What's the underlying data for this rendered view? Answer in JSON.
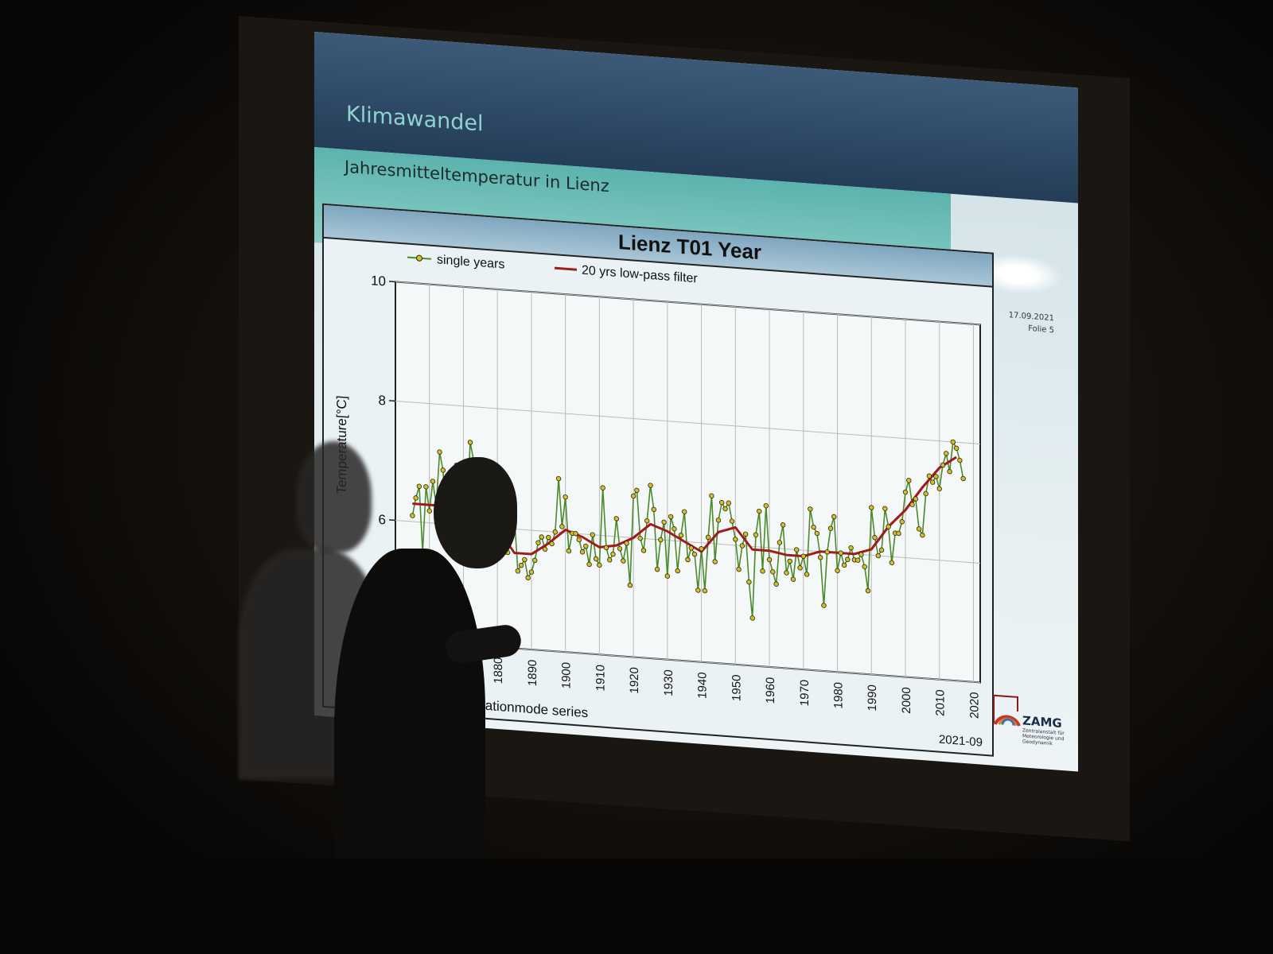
{
  "slide": {
    "title": "Klimawandel",
    "subtitle": "Jahresmitteltemperatur in Lienz",
    "date": "17.09.2021",
    "folie": "Folie 5",
    "logo_text": "ZAMG",
    "logo_subtitle": "Zentralanstalt für Meteorologie und Geodynamik"
  },
  "colors": {
    "single_years": "#4a8a2a",
    "marker": "#d4c21a",
    "lowpass": "#a01c1c",
    "header": "#243d58",
    "teal": "#5cb3ad"
  },
  "chart_data": {
    "type": "line",
    "title": "Lienz T01 Year",
    "ylabel": "Temperature[°C]",
    "footer_left": "Homogenised stationmode series",
    "footer_right": "2021-09",
    "xlim": [
      1850,
      2022
    ],
    "ylim": [
      4,
      10
    ],
    "yticks": [
      4,
      6,
      8,
      10
    ],
    "xticks": [
      1860,
      1870,
      1880,
      1890,
      1900,
      1910,
      1920,
      1930,
      1940,
      1950,
      1960,
      1970,
      1980,
      1990,
      2000,
      2010,
      2020
    ],
    "grid": true,
    "legend_position": "top",
    "series": [
      {
        "name": "single years",
        "x_start": 1855,
        "values": [
          6.1,
          6.4,
          6.6,
          5.5,
          6.6,
          6.2,
          6.7,
          6.3,
          7.2,
          6.9,
          5.8,
          6.3,
          6.5,
          7.0,
          6.4,
          6.6,
          6.2,
          7.4,
          7.1,
          6.0,
          6.5,
          5.9,
          6.2,
          5.7,
          6.3,
          6.0,
          5.8,
          5.9,
          5.6,
          6.4,
          6.2,
          5.3,
          5.4,
          5.5,
          5.2,
          5.3,
          5.5,
          5.8,
          5.9,
          5.7,
          5.9,
          5.8,
          6.0,
          6.9,
          6.1,
          6.6,
          5.7,
          6.0,
          6.0,
          5.9,
          5.7,
          5.8,
          5.5,
          6.0,
          5.6,
          5.5,
          6.8,
          5.8,
          5.6,
          5.7,
          6.3,
          5.8,
          5.6,
          5.9,
          5.2,
          6.7,
          6.8,
          6.0,
          5.8,
          6.3,
          6.9,
          6.5,
          5.5,
          6.0,
          6.3,
          5.4,
          6.4,
          6.2,
          5.5,
          6.1,
          6.5,
          5.7,
          5.9,
          5.8,
          5.2,
          5.9,
          5.2,
          6.1,
          6.8,
          5.7,
          6.4,
          6.7,
          6.6,
          6.7,
          6.4,
          6.1,
          5.6,
          6.0,
          6.2,
          5.4,
          4.8,
          6.2,
          6.6,
          5.6,
          6.7,
          5.8,
          5.6,
          5.4,
          6.1,
          6.4,
          5.6,
          5.8,
          5.5,
          6.0,
          5.7,
          5.9,
          5.6,
          6.7,
          6.4,
          6.3,
          5.9,
          5.1,
          6.0,
          6.4,
          6.6,
          5.7,
          6.0,
          5.8,
          5.9,
          6.1,
          5.9,
          5.9,
          6.0,
          5.8,
          5.4,
          6.8,
          6.3,
          6.0,
          6.1,
          6.8,
          6.5,
          5.9,
          6.4,
          6.4,
          6.6,
          7.1,
          7.3,
          6.9,
          7.0,
          6.5,
          6.4,
          7.1,
          7.4,
          7.3,
          7.4,
          7.2,
          7.6,
          7.8,
          7.5,
          8.0,
          7.9,
          7.7,
          7.4
        ]
      },
      {
        "name": "20 yrs low-pass filter",
        "x": [
          1855,
          1860,
          1865,
          1870,
          1875,
          1880,
          1885,
          1890,
          1895,
          1900,
          1905,
          1910,
          1915,
          1920,
          1925,
          1930,
          1935,
          1940,
          1945,
          1950,
          1955,
          1960,
          1965,
          1970,
          1975,
          1980,
          1985,
          1990,
          1995,
          2000,
          2005,
          2010,
          2015
        ],
        "values": [
          6.3,
          6.3,
          6.3,
          6.3,
          6.2,
          6.0,
          5.6,
          5.6,
          5.8,
          6.05,
          5.95,
          5.8,
          5.85,
          6.0,
          6.25,
          6.15,
          6.0,
          5.85,
          6.2,
          6.3,
          5.95,
          5.95,
          5.9,
          5.9,
          6.0,
          6.0,
          6.0,
          6.1,
          6.5,
          6.8,
          7.2,
          7.55,
          7.75
        ]
      }
    ]
  }
}
